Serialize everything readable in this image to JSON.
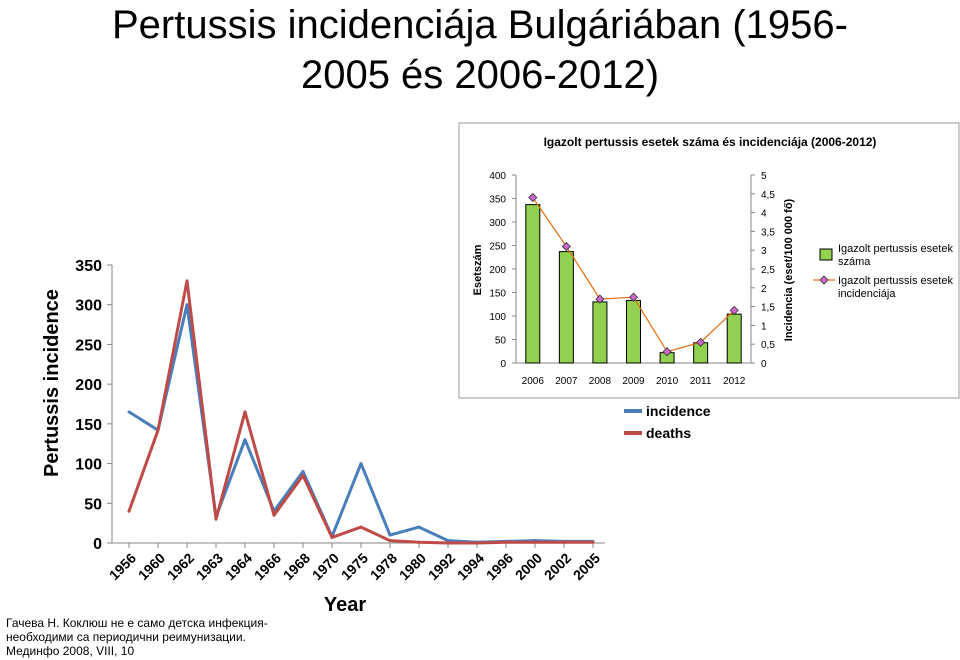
{
  "slide": {
    "title_line1": "Pertussis incidenciája Bulgáriában (1956-",
    "title_line2": "2005 és 2006-2012)",
    "source_line1": "Гачева Н. Коклюш не е само детска инфекция-",
    "source_line2": "необходими са периодични реимунизации.",
    "source_line3": "Мединфо 2008, VIII, 10"
  },
  "chart_data": [
    {
      "type": "line",
      "ylabel": "Pertussis incidence",
      "xlabel": "Year",
      "ylim": [
        0,
        350
      ],
      "yticks": [
        0,
        50,
        100,
        150,
        200,
        250,
        300,
        350
      ],
      "categories": [
        "1956",
        "1960",
        "1962",
        "1963",
        "1964",
        "1966",
        "1968",
        "1970",
        "1975",
        "1978",
        "1980",
        "1992",
        "1994",
        "1996",
        "2000",
        "2002",
        "2005"
      ],
      "legend_position": "top-right",
      "grid": false,
      "series": [
        {
          "name": "incidence",
          "color": "#4a7ebb",
          "values": [
            165,
            142,
            300,
            33,
            130,
            40,
            90,
            8,
            100,
            10,
            20,
            3,
            1,
            2,
            3,
            2,
            2
          ]
        },
        {
          "name": "deaths",
          "color": "#be4b48",
          "values": [
            40,
            142,
            330,
            30,
            165,
            35,
            85,
            7,
            20,
            3,
            1,
            0,
            0,
            1,
            1,
            1,
            1
          ]
        }
      ]
    },
    {
      "type": "bar",
      "title": "Igazolt pertussis esetek száma és incidenciája (2006-2012)",
      "ylabel": "Esetszám",
      "y2label": "Incidencia (eset/100 000 fő)",
      "ylim": [
        0,
        400
      ],
      "yticks": [
        0,
        50,
        100,
        150,
        200,
        250,
        300,
        350,
        400
      ],
      "y2lim": [
        0,
        5
      ],
      "y2ticks": [
        "0",
        "0,5",
        "1",
        "1,5",
        "2",
        "2,5",
        "3",
        "3,5",
        "4",
        "4,5",
        "5"
      ],
      "categories": [
        "2006",
        "2007",
        "2008",
        "2009",
        "2010",
        "2011",
        "2012"
      ],
      "legend_position": "right",
      "grid": false,
      "series": [
        {
          "name": "Igazolt pertussis esetek száma",
          "color": "#92d050",
          "axis": "left",
          "values": [
            337,
            237,
            130,
            133,
            22,
            43,
            104
          ]
        },
        {
          "name": "Igazolt pertussis esetek incidenciája",
          "color": "#e46c0a",
          "marker_color": "#cc66cc",
          "axis": "right",
          "values": [
            4.4,
            3.1,
            1.7,
            1.75,
            0.3,
            0.55,
            1.4
          ]
        }
      ]
    }
  ]
}
